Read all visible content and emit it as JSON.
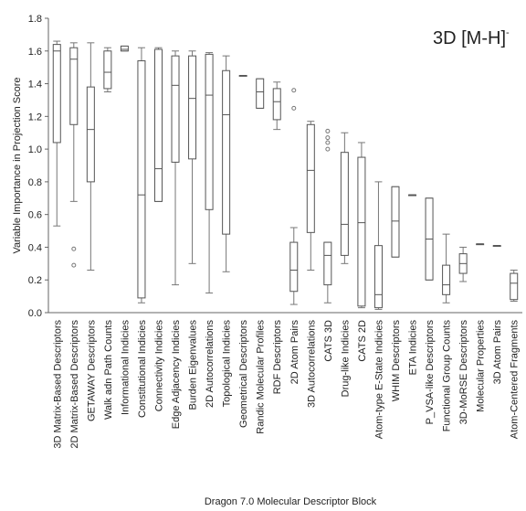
{
  "chart_data": {
    "type": "box",
    "title": "",
    "annotation": {
      "text": "3D [M-H]",
      "superscript": "-"
    },
    "xlabel": "Dragon 7.0 Molecular Descriptor Block",
    "ylabel": "Variable Importance in Projection Score",
    "ylim": [
      0,
      1.8
    ],
    "yticks": [
      "0.0",
      "0.2",
      "0.4",
      "0.6",
      "0.8",
      "1.0",
      "1.2",
      "1.4",
      "1.6",
      "1.8"
    ],
    "grid": false,
    "categories": [
      "3D Matrix-Based Descriptors",
      "2D Matrix-Based Descriptors",
      "GETAWAY Descriptors",
      "Walk adn Path Counts",
      "Informational Indicies",
      "Constitutional Indicies",
      "Connectivity Indicies",
      "Edge Adjacency Indicies",
      "Burden Eigenvalues",
      "2D Autocorrelations",
      "Topological Indicies",
      "Geometrical Descriptors",
      "Randic Molecular Profiles",
      "RDF Descriptors",
      "2D Atom Pairs",
      "3D Autocorrelations",
      "CATS 3D",
      "Drug-like Indicies",
      "CATS 2D",
      "Atom-type E-State Indicies",
      "WHIM Descriptors",
      "ETA Indicies",
      "P_VSA-like Descriptors",
      "Functional Group Counts",
      "3D-MoRSE Descriptors",
      "Molecular Properties",
      "3D Atom Pairs",
      "Atom-Centered Fragments"
    ],
    "boxes": [
      {
        "min": 0.53,
        "q1": 1.04,
        "median": 1.6,
        "q3": 1.64,
        "max": 1.66,
        "outliers": []
      },
      {
        "min": 0.68,
        "q1": 1.15,
        "median": 1.55,
        "q3": 1.62,
        "max": 1.65,
        "outliers": [
          0.39,
          0.29
        ]
      },
      {
        "min": 0.26,
        "q1": 0.8,
        "median": 1.12,
        "q3": 1.38,
        "max": 1.65,
        "outliers": []
      },
      {
        "min": 1.35,
        "q1": 1.37,
        "median": 1.47,
        "q3": 1.6,
        "max": 1.62,
        "outliers": []
      },
      {
        "min": 1.6,
        "q1": 1.6,
        "median": 1.61,
        "q3": 1.63,
        "max": 1.63,
        "outliers": []
      },
      {
        "min": 0.06,
        "q1": 0.09,
        "median": 0.72,
        "q3": 1.54,
        "max": 1.62,
        "outliers": []
      },
      {
        "min": 0.68,
        "q1": 0.68,
        "median": 0.88,
        "q3": 1.61,
        "max": 1.62,
        "outliers": []
      },
      {
        "min": 0.17,
        "q1": 0.92,
        "median": 1.39,
        "q3": 1.57,
        "max": 1.6,
        "outliers": []
      },
      {
        "min": 0.3,
        "q1": 0.94,
        "median": 1.31,
        "q3": 1.57,
        "max": 1.6,
        "outliers": []
      },
      {
        "min": 0.12,
        "q1": 0.63,
        "median": 1.33,
        "q3": 1.58,
        "max": 1.59,
        "outliers": []
      },
      {
        "min": 0.25,
        "q1": 0.48,
        "median": 1.21,
        "q3": 1.48,
        "max": 1.57,
        "outliers": []
      },
      {
        "min": 1.45,
        "q1": 1.45,
        "median": 1.45,
        "q3": 1.45,
        "max": 1.45,
        "outliers": []
      },
      {
        "min": 1.25,
        "q1": 1.25,
        "median": 1.35,
        "q3": 1.43,
        "max": 1.43,
        "outliers": []
      },
      {
        "min": 1.12,
        "q1": 1.18,
        "median": 1.29,
        "q3": 1.37,
        "max": 1.41,
        "outliers": []
      },
      {
        "min": 0.05,
        "q1": 0.13,
        "median": 0.26,
        "q3": 0.43,
        "max": 0.52,
        "outliers": [
          1.36,
          1.25
        ]
      },
      {
        "min": 0.26,
        "q1": 0.49,
        "median": 0.87,
        "q3": 1.15,
        "max": 1.17,
        "outliers": []
      },
      {
        "min": 0.06,
        "q1": 0.17,
        "median": 0.35,
        "q3": 0.43,
        "max": 0.43,
        "outliers": [
          1.11,
          1.07,
          1.04,
          1.0
        ]
      },
      {
        "min": 0.3,
        "q1": 0.35,
        "median": 0.54,
        "q3": 0.98,
        "max": 1.1,
        "outliers": []
      },
      {
        "min": 0.03,
        "q1": 0.04,
        "median": 0.55,
        "q3": 0.95,
        "max": 1.04,
        "outliers": []
      },
      {
        "min": 0.02,
        "q1": 0.03,
        "median": 0.11,
        "q3": 0.41,
        "max": 0.8,
        "outliers": []
      },
      {
        "min": 0.34,
        "q1": 0.34,
        "median": 0.56,
        "q3": 0.77,
        "max": 0.77,
        "outliers": []
      },
      {
        "min": 0.72,
        "q1": 0.72,
        "median": 0.72,
        "q3": 0.72,
        "max": 0.72,
        "outliers": []
      },
      {
        "min": 0.2,
        "q1": 0.2,
        "median": 0.45,
        "q3": 0.7,
        "max": 0.7,
        "outliers": []
      },
      {
        "min": 0.06,
        "q1": 0.11,
        "median": 0.17,
        "q3": 0.29,
        "max": 0.48,
        "outliers": []
      },
      {
        "min": 0.19,
        "q1": 0.24,
        "median": 0.3,
        "q3": 0.36,
        "max": 0.4,
        "outliers": []
      },
      {
        "min": 0.42,
        "q1": 0.42,
        "median": 0.42,
        "q3": 0.42,
        "max": 0.42,
        "outliers": []
      },
      {
        "min": 0.41,
        "q1": 0.41,
        "median": 0.41,
        "q3": 0.41,
        "max": 0.41,
        "outliers": []
      },
      {
        "min": 0.07,
        "q1": 0.08,
        "median": 0.18,
        "q3": 0.24,
        "max": 0.26,
        "outliers": []
      }
    ]
  }
}
